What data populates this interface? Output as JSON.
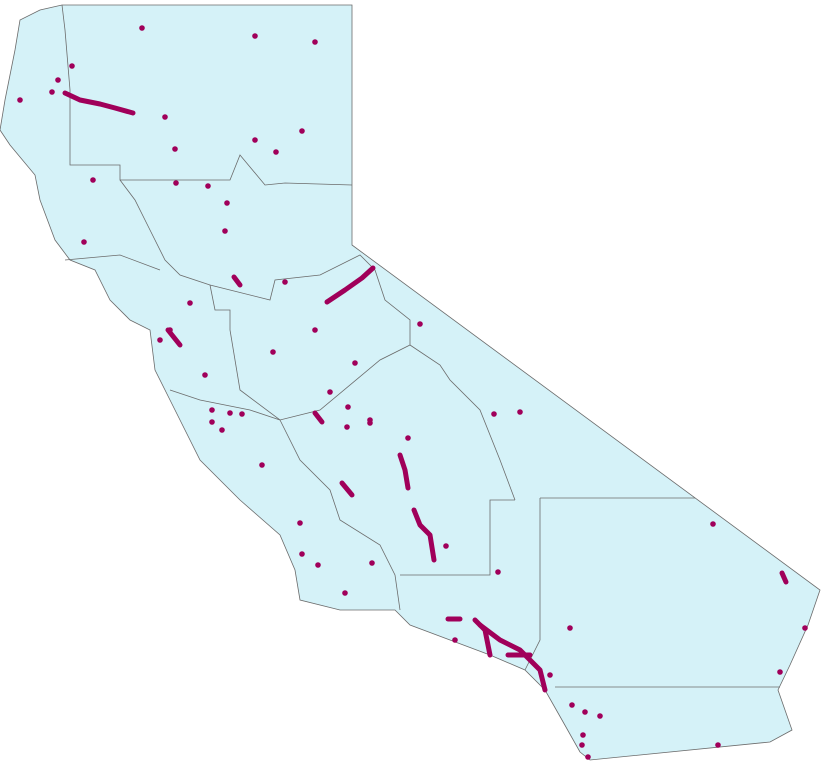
{
  "map": {
    "land_color": "#d5f2f8",
    "border_color": "#6b6b6b",
    "feature_color": "#a0005a",
    "background_color": "#ffffff"
  }
}
